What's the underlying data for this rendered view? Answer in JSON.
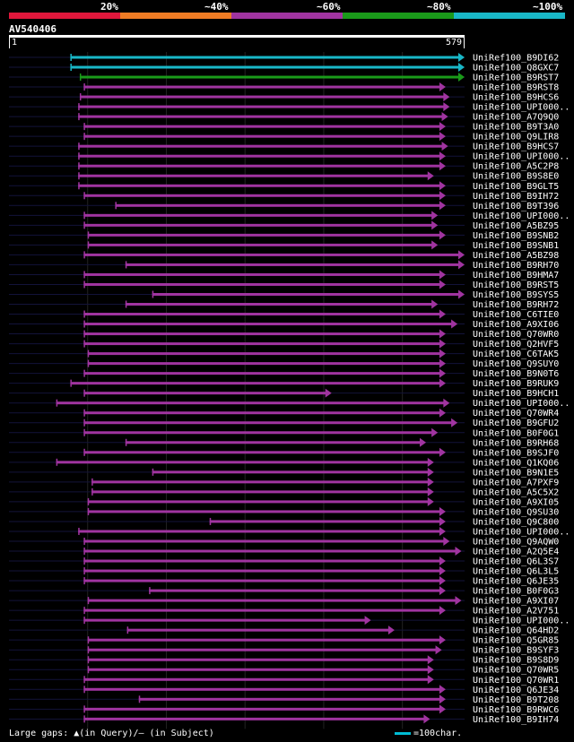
{
  "legend": {
    "labels": [
      "20%",
      "~40%",
      "~60%",
      "~80%",
      "~100%"
    ],
    "colors": [
      "#e0173b",
      "#f07c24",
      "#a034a0",
      "#1a9a1a",
      "#19b7c7"
    ]
  },
  "query": {
    "title": "AV540406",
    "start": "1",
    "end": "579"
  },
  "footer": {
    "gaps_text": "Large gaps: ▲(in Query)/— (in Subject)",
    "scale_text": "=100char."
  },
  "chart_data": {
    "type": "alignment",
    "query_length": 579,
    "hits": [
      {
        "id": "UniRef100_B9DI62",
        "start": 78,
        "end": 579,
        "identity": "~100%"
      },
      {
        "id": "UniRef100_Q8GXC7",
        "start": 78,
        "end": 579,
        "identity": "~100%"
      },
      {
        "id": "UniRef100_B9RST7",
        "start": 90,
        "end": 579,
        "identity": "~80%"
      },
      {
        "id": "UniRef100_B9RST8",
        "start": 95,
        "end": 555,
        "identity": "~60%"
      },
      {
        "id": "UniRef100_B9HCS6",
        "start": 90,
        "end": 560,
        "identity": "~60%"
      },
      {
        "id": "UniRef100_UPI000..",
        "start": 88,
        "end": 560,
        "identity": "~60%"
      },
      {
        "id": "UniRef100_A7Q9Q0",
        "start": 88,
        "end": 558,
        "identity": "~60%"
      },
      {
        "id": "UniRef100_B9T3A0",
        "start": 95,
        "end": 555,
        "identity": "~60%"
      },
      {
        "id": "UniRef100_Q9LIR8",
        "start": 95,
        "end": 555,
        "identity": "~60%"
      },
      {
        "id": "UniRef100_B9HCS7",
        "start": 88,
        "end": 558,
        "identity": "~60%"
      },
      {
        "id": "UniRef100_UPI000..",
        "start": 88,
        "end": 555,
        "identity": "~60%"
      },
      {
        "id": "UniRef100_A5C2P8",
        "start": 88,
        "end": 555,
        "identity": "~60%"
      },
      {
        "id": "UniRef100_B9S8E0",
        "start": 88,
        "end": 540,
        "identity": "~60%"
      },
      {
        "id": "UniRef100_B9GLT5",
        "start": 88,
        "end": 555,
        "identity": "~60%"
      },
      {
        "id": "UniRef100_B9IH72",
        "start": 95,
        "end": 555,
        "identity": "~60%"
      },
      {
        "id": "UniRef100_B9T396",
        "start": 135,
        "end": 555,
        "identity": "~60%"
      },
      {
        "id": "UniRef100_UPI000..",
        "start": 95,
        "end": 545,
        "identity": "~60%"
      },
      {
        "id": "UniRef100_A5BZ95",
        "start": 95,
        "end": 545,
        "identity": "~60%"
      },
      {
        "id": "UniRef100_B9SNB2",
        "start": 100,
        "end": 555,
        "identity": "~60%"
      },
      {
        "id": "UniRef100_B9SNB1",
        "start": 100,
        "end": 545,
        "identity": "~60%"
      },
      {
        "id": "UniRef100_A5BZ98",
        "start": 95,
        "end": 580,
        "identity": "~60%"
      },
      {
        "id": "UniRef100_B9RH70",
        "start": 148,
        "end": 585,
        "identity": "~60%"
      },
      {
        "id": "UniRef100_B9HMA7",
        "start": 95,
        "end": 555,
        "identity": "~60%"
      },
      {
        "id": "UniRef100_B9RST5",
        "start": 95,
        "end": 555,
        "identity": "~60%"
      },
      {
        "id": "UniRef100_B9SYS5",
        "start": 182,
        "end": 580,
        "identity": "~60%"
      },
      {
        "id": "UniRef100_B9RH72",
        "start": 148,
        "end": 545,
        "identity": "~60%"
      },
      {
        "id": "UniRef100_C6TIE0",
        "start": 95,
        "end": 555,
        "identity": "~60%"
      },
      {
        "id": "UniRef100_A9XI06",
        "start": 95,
        "end": 570,
        "identity": "~60%"
      },
      {
        "id": "UniRef100_Q70WR0",
        "start": 95,
        "end": 555,
        "identity": "~60%"
      },
      {
        "id": "UniRef100_Q2HVF5",
        "start": 95,
        "end": 555,
        "identity": "~60%"
      },
      {
        "id": "UniRef100_C6TAK5",
        "start": 100,
        "end": 555,
        "identity": "~60%"
      },
      {
        "id": "UniRef100_Q9SUY0",
        "start": 100,
        "end": 555,
        "identity": "~60%"
      },
      {
        "id": "UniRef100_B9N0T6",
        "start": 95,
        "end": 555,
        "identity": "~60%"
      },
      {
        "id": "UniRef100_B9RUK9",
        "start": 78,
        "end": 555,
        "identity": "~60%"
      },
      {
        "id": "UniRef100_B9HCH1",
        "start": 95,
        "end": 410,
        "identity": "~60%"
      },
      {
        "id": "UniRef100_UPI000..",
        "start": 60,
        "end": 560,
        "identity": "~60%"
      },
      {
        "id": "UniRef100_Q70WR4",
        "start": 95,
        "end": 555,
        "identity": "~60%"
      },
      {
        "id": "UniRef100_B9GFU2",
        "start": 95,
        "end": 570,
        "identity": "~60%"
      },
      {
        "id": "UniRef100_B0F0G1",
        "start": 95,
        "end": 545,
        "identity": "~60%"
      },
      {
        "id": "UniRef100_B9RH68",
        "start": 148,
        "end": 530,
        "identity": "~60%"
      },
      {
        "id": "UniRef100_B9SJF0",
        "start": 95,
        "end": 555,
        "identity": "~60%"
      },
      {
        "id": "UniRef100_Q1KQ06",
        "start": 60,
        "end": 540,
        "identity": "~60%"
      },
      {
        "id": "UniRef100_B9N1E5",
        "start": 182,
        "end": 540,
        "identity": "~60%"
      },
      {
        "id": "UniRef100_A7PXF9",
        "start": 105,
        "end": 540,
        "identity": "~60%"
      },
      {
        "id": "UniRef100_A5C5X2",
        "start": 105,
        "end": 540,
        "identity": "~60%"
      },
      {
        "id": "UniRef100_A9XI05",
        "start": 100,
        "end": 540,
        "identity": "~60%"
      },
      {
        "id": "UniRef100_Q9SU30",
        "start": 100,
        "end": 555,
        "identity": "~60%"
      },
      {
        "id": "UniRef100_Q9C800",
        "start": 255,
        "end": 555,
        "identity": "~60%"
      },
      {
        "id": "UniRef100_UPI000..",
        "start": 88,
        "end": 555,
        "identity": "~60%"
      },
      {
        "id": "UniRef100_Q9AQW0",
        "start": 95,
        "end": 560,
        "identity": "~60%"
      },
      {
        "id": "UniRef100_A2Q5E4",
        "start": 95,
        "end": 575,
        "identity": "~60%"
      },
      {
        "id": "UniRef100_Q6L3S7",
        "start": 95,
        "end": 555,
        "identity": "~60%"
      },
      {
        "id": "UniRef100_Q6L3L5",
        "start": 95,
        "end": 555,
        "identity": "~60%"
      },
      {
        "id": "UniRef100_Q6JE35",
        "start": 95,
        "end": 555,
        "identity": "~60%"
      },
      {
        "id": "UniRef100_B0F0G3",
        "start": 178,
        "end": 555,
        "identity": "~60%"
      },
      {
        "id": "UniRef100_A9XI07",
        "start": 100,
        "end": 575,
        "identity": "~60%"
      },
      {
        "id": "UniRef100_A2V751",
        "start": 95,
        "end": 555,
        "identity": "~60%"
      },
      {
        "id": "UniRef100_UPI000..",
        "start": 95,
        "end": 460,
        "identity": "~60%"
      },
      {
        "id": "UniRef100_Q64HD2",
        "start": 150,
        "end": 490,
        "identity": "~60%"
      },
      {
        "id": "UniRef100_Q5GR85",
        "start": 100,
        "end": 555,
        "identity": "~60%"
      },
      {
        "id": "UniRef100_B9SYF3",
        "start": 100,
        "end": 550,
        "identity": "~60%"
      },
      {
        "id": "UniRef100_B9S8D9",
        "start": 100,
        "end": 540,
        "identity": "~60%"
      },
      {
        "id": "UniRef100_Q70WR5",
        "start": 100,
        "end": 540,
        "identity": "~60%"
      },
      {
        "id": "UniRef100_Q70WR1",
        "start": 95,
        "end": 540,
        "identity": "~60%"
      },
      {
        "id": "UniRef100_Q6JE34",
        "start": 95,
        "end": 555,
        "identity": "~60%"
      },
      {
        "id": "UniRef100_B9T208",
        "start": 165,
        "end": 555,
        "identity": "~60%"
      },
      {
        "id": "UniRef100_B9RWC6",
        "start": 95,
        "end": 555,
        "identity": "~60%"
      },
      {
        "id": "UniRef100_B9IH74",
        "start": 95,
        "end": 535,
        "identity": "~60%"
      }
    ]
  }
}
